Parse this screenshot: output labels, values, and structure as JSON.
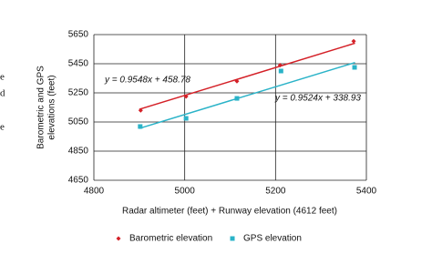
{
  "cropped_text": [
    "e",
    "d",
    "e"
  ],
  "chart_data": {
    "type": "scatter",
    "x_label": "Radar altimeter (feet) + Runway elevation (4612 feet)",
    "y_label": [
      "Barometric and GPS",
      "elevations (feet)"
    ],
    "xlim": [
      4800,
      5400
    ],
    "xticks": [
      4800,
      5000,
      5200,
      5400
    ],
    "ylim": [
      4650,
      5650
    ],
    "yticks": [
      4650,
      4850,
      5050,
      5250,
      5450,
      5650
    ],
    "grid": true,
    "legend": "bottom",
    "series": [
      {
        "name": "Barometric elevation",
        "color": "#d42027",
        "marker": "diamond",
        "x": [
          4903,
          5003,
          5115,
          5210,
          5372
        ],
        "values": [
          5130,
          5225,
          5330,
          5440,
          5605
        ],
        "trendline": {
          "x": [
            4900,
            5375
          ],
          "values": [
            5137,
            5591
          ]
        },
        "equation": "y = 0.9548x + 458.78"
      },
      {
        "name": "GPS elevation",
        "color": "#2ab3c8",
        "marker": "square",
        "x": [
          4902,
          5003,
          5115,
          5212,
          5374
        ],
        "values": [
          5019,
          5075,
          5212,
          5400,
          5425
        ],
        "trendline": {
          "x": [
            4900,
            5375
          ],
          "values": [
            5006,
            5458
          ]
        },
        "equation": "y = 0.9524x + 338.93"
      }
    ]
  }
}
